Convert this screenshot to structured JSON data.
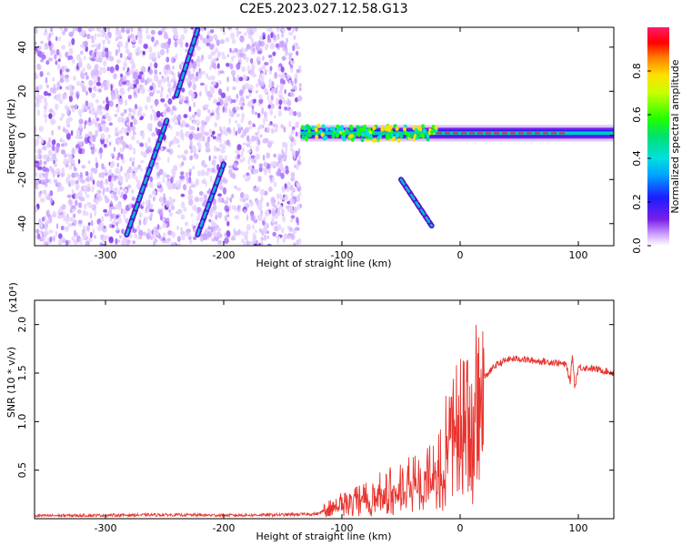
{
  "title": "C2E5.2023.027.12.58.G13",
  "colors": {
    "snr_line": "#e8352f",
    "background": "#ffffff"
  },
  "chart_data": [
    {
      "type": "heatmap",
      "xlabel": "Height of straight line (km)",
      "ylabel": "Frequency (Hz)",
      "xlim": [
        -360,
        130
      ],
      "ylim": [
        -50,
        49
      ],
      "xticks": [
        -300,
        -200,
        -100,
        0,
        100
      ],
      "yticks": [
        -40,
        -20,
        0,
        20,
        40
      ],
      "xtick_labels": [
        "-300",
        "-200",
        "-100",
        "0",
        "100"
      ],
      "ytick_labels": [
        "-40",
        "-20",
        "0",
        "20",
        "40"
      ],
      "colorbar": {
        "label": "Normalized spectral amplitude",
        "range": [
          0.0,
          1.0
        ],
        "ticks": [
          0.0,
          0.2,
          0.4,
          0.6,
          0.8
        ],
        "tick_labels": [
          "0.0",
          "0.2",
          "0.4",
          "0.6",
          "0.8"
        ],
        "colormap": "rainbow"
      },
      "features": {
        "noise_region_x": [
          -360,
          -135
        ],
        "carrier_line_x": [
          -135,
          130
        ],
        "carrier_line_freq": 1,
        "diagonal_tracks": [
          {
            "x": [
              -282,
              -248
            ],
            "freq": [
              -45,
              7
            ]
          },
          {
            "x": [
              -240,
              -222
            ],
            "freq": [
              18,
              48
            ]
          },
          {
            "x": [
              -222,
              -200
            ],
            "freq": [
              -45,
              -13
            ]
          },
          {
            "x": [
              -50,
              -24
            ],
            "freq": [
              -20,
              -41
            ]
          }
        ]
      }
    },
    {
      "type": "line",
      "xlabel": "Height of straight line (km)",
      "ylabel": "SNR (10 * v/v)",
      "scale_label": "(x10⁴)",
      "xlim": [
        -360,
        130
      ],
      "ylim": [
        0,
        22500
      ],
      "xticks": [
        -300,
        -200,
        -100,
        0,
        100
      ],
      "yticks": [
        5000,
        10000,
        15000,
        20000
      ],
      "xtick_labels": [
        "-300",
        "-200",
        "-100",
        "0",
        "100"
      ],
      "ytick_labels": [
        "0.5",
        "1.0",
        "1.5",
        "2.0"
      ],
      "series": [
        {
          "x": [
            -360,
            -300,
            -250,
            -200,
            -150,
            -120,
            -110,
            -100,
            -90,
            -80,
            -70,
            -60,
            -50,
            -40,
            -30,
            -20,
            -15,
            -10,
            -5,
            0,
            5,
            10,
            20,
            30,
            40,
            50,
            60,
            70,
            80,
            85,
            90,
            93,
            95,
            97,
            100,
            110,
            120,
            130
          ],
          "y": [
            300,
            350,
            400,
            350,
            400,
            500,
            1200,
            1800,
            2200,
            2600,
            3000,
            3400,
            3800,
            4300,
            5000,
            6000,
            7500,
            9000,
            10500,
            11000,
            12000,
            13000,
            14500,
            15800,
            16400,
            16500,
            16300,
            16200,
            16100,
            16000,
            15800,
            14000,
            17000,
            13500,
            15600,
            15500,
            15300,
            15000
          ]
        }
      ]
    }
  ]
}
